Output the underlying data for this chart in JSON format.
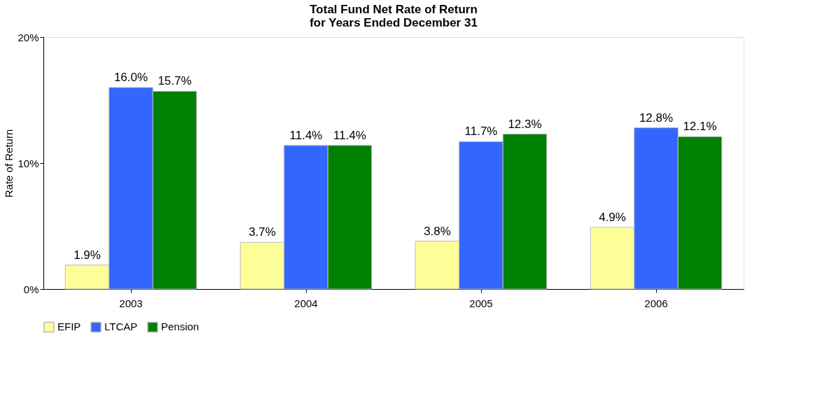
{
  "chart_data": {
    "type": "bar",
    "title": "Total Fund Net Rate of Return\nfor Years Ended December 31",
    "ylabel": "Rate of Return",
    "categories": [
      "2003",
      "2004",
      "2005",
      "2006"
    ],
    "series": [
      {
        "name": "EFIP",
        "color": "#ffff99",
        "values": [
          1.9,
          3.7,
          3.8,
          4.9
        ],
        "value_labels": [
          "1.9%",
          "3.7%",
          "3.8%",
          "4.9%"
        ]
      },
      {
        "name": "LTCAP",
        "color": "#3366ff",
        "values": [
          16.0,
          11.4,
          11.7,
          12.8
        ],
        "value_labels": [
          "16.0%",
          "11.4%",
          "11.7%",
          "12.8%"
        ]
      },
      {
        "name": "Pension",
        "color": "#008000",
        "values": [
          15.7,
          11.4,
          12.3,
          12.1
        ],
        "value_labels": [
          "15.7%",
          "11.4%",
          "12.3%",
          "12.1%"
        ]
      }
    ],
    "ylim": [
      0,
      20
    ],
    "yticks": [
      {
        "value": 0,
        "label": "0%"
      },
      {
        "value": 10,
        "label": "10%"
      },
      {
        "value": 20,
        "label": "20%"
      }
    ],
    "grid": false,
    "legend": "bottom"
  }
}
